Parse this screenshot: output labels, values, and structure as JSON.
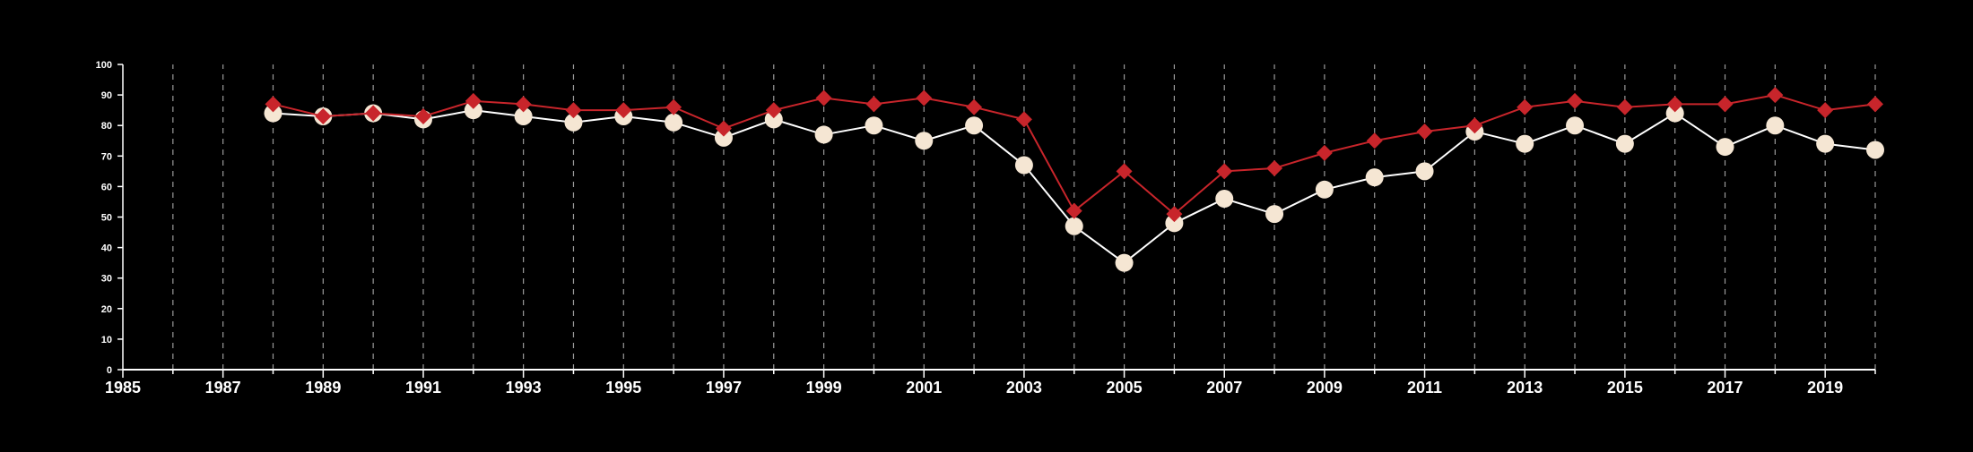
{
  "chart_data": {
    "type": "line",
    "title": "",
    "xlabel": "",
    "ylabel": "",
    "xlim": [
      1985,
      2020
    ],
    "ylim": [
      0,
      100
    ],
    "x_ticks": [
      1985,
      1987,
      1989,
      1991,
      1993,
      1995,
      1997,
      1999,
      2001,
      2003,
      2005,
      2007,
      2009,
      2011,
      2013,
      2015,
      2017,
      2019
    ],
    "x_tick_labels": [
      "1985",
      "1987",
      "1989",
      "1991",
      "1993",
      "1995",
      "1997",
      "1999",
      "2001",
      "2003",
      "2005",
      "2007",
      "2009",
      "2011",
      "2013",
      "2015",
      "2017",
      "2019"
    ],
    "y_ticks": [
      0,
      10,
      20,
      30,
      40,
      50,
      60,
      70,
      80,
      90,
      100
    ],
    "y_tick_labels": [
      "0",
      "10",
      "20",
      "30",
      "40",
      "50",
      "60",
      "70",
      "80",
      "90",
      "100"
    ],
    "grid": "vertical dashed lines at each year",
    "legend": "none",
    "x": [
      1988,
      1989,
      1990,
      1991,
      1992,
      1993,
      1994,
      1995,
      1996,
      1997,
      1998,
      1999,
      2000,
      2001,
      2002,
      2003,
      2004,
      2005,
      2006,
      2007,
      2008,
      2009,
      2010,
      2011,
      2012,
      2013,
      2014,
      2015,
      2016,
      2017,
      2018,
      2019,
      2020
    ],
    "series": [
      {
        "marker": "circle",
        "color": "#f5e6d3",
        "line_color": "#ffffff",
        "values": [
          84,
          83,
          84,
          82,
          85,
          83,
          81,
          83,
          81,
          76,
          82,
          77,
          80,
          75,
          80,
          67,
          47,
          35,
          48,
          56,
          51,
          59,
          63,
          65,
          78,
          74,
          80,
          74,
          84,
          73,
          80,
          74,
          72
        ]
      },
      {
        "marker": "diamond",
        "color": "#c8252b",
        "line_color": "#c8252b",
        "values": [
          87,
          83,
          84,
          83,
          88,
          87,
          85,
          85,
          86,
          79,
          85,
          89,
          87,
          89,
          86,
          82,
          52,
          65,
          51,
          65,
          66,
          71,
          75,
          78,
          80,
          86,
          88,
          86,
          87,
          87,
          90,
          85,
          87
        ]
      }
    ]
  }
}
